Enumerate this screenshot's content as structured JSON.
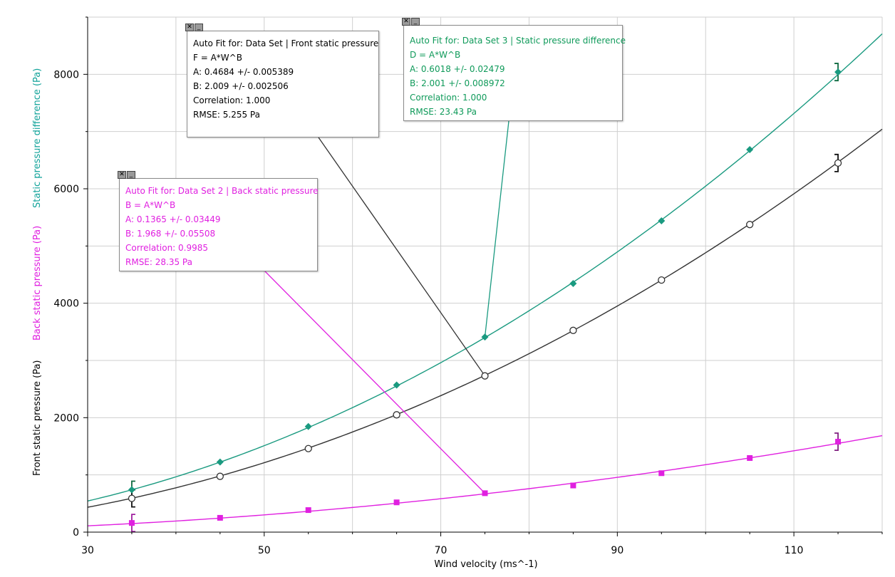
{
  "chart_data": {
    "type": "scatter",
    "xlabel": "Wind velocity  (ms^-1)",
    "ylabels": [
      {
        "text": "Front static pressure  (Pa)",
        "color": "#000000"
      },
      {
        "text": "Back static pressure  (Pa)",
        "color": "#e020e0"
      },
      {
        "text": "Static pressure difference  (Pa)",
        "color": "#12a39a"
      }
    ],
    "xlim": [
      30,
      120
    ],
    "ylim": [
      0,
      9000
    ],
    "x_ticks": [
      30,
      50,
      70,
      90,
      110
    ],
    "y_ticks": [
      0,
      2000,
      4000,
      6000,
      8000
    ],
    "grid": true,
    "series": [
      {
        "key": "front",
        "color": "#333333",
        "marker": "circle",
        "x": [
          35,
          45,
          55,
          65,
          75,
          85,
          95,
          105,
          115
        ],
        "y": [
          590,
          975,
          1460,
          2050,
          2730,
          3525,
          4405,
          5375,
          6450
        ],
        "fit": {
          "A": 0.4684,
          "B": 2.009
        },
        "error_bar": {
          "x": 115,
          "y": 6450,
          "half": 150
        }
      },
      {
        "key": "back",
        "color": "#e020e0",
        "marker": "square",
        "x": [
          35,
          45,
          55,
          65,
          75,
          85,
          95,
          105,
          115
        ],
        "y": [
          160,
          250,
          385,
          520,
          680,
          815,
          1030,
          1295,
          1580
        ],
        "fit": {
          "A": 0.1365,
          "B": 1.968
        },
        "error_bar": {
          "x": 115,
          "y": 1580,
          "half": 150
        }
      },
      {
        "key": "diff",
        "color": "#1a9a80",
        "marker": "diamond",
        "x": [
          35,
          45,
          55,
          65,
          75,
          85,
          95,
          105,
          115
        ],
        "y": [
          740,
          1225,
          1845,
          2570,
          3410,
          4345,
          5440,
          6685,
          8040
        ],
        "fit": {
          "A": 0.6018,
          "B": 2.001
        },
        "error_bar": {
          "x": 115,
          "y": 8040,
          "half": 150
        }
      }
    ],
    "start_error_bars": [
      {
        "x": 35,
        "y": 740,
        "half": 150,
        "color": "#1a9a80"
      },
      {
        "x": 35,
        "y": 590,
        "half": 150,
        "color": "#333333"
      },
      {
        "x": 35,
        "y": 160,
        "half": 150,
        "color": "#e020e0"
      }
    ],
    "annotations": [
      {
        "box": "front",
        "point": [
          75,
          2730
        ]
      },
      {
        "box": "back",
        "point": [
          75,
          680
        ]
      },
      {
        "box": "diff",
        "point": [
          75,
          3410
        ]
      }
    ]
  },
  "fit_boxes": {
    "front": {
      "color": "#000000",
      "title": "Auto Fit for: Data Set | Front static pressure",
      "equation": "F = A*W^B",
      "a": "A: 0.4684 +/- 0.005389",
      "b": "B: 2.009 +/- 0.002506",
      "correlation": "Correlation: 1.000",
      "rmse": "RMSE: 5.255 Pa"
    },
    "back": {
      "color": "#e020e0",
      "title": "Auto Fit for: Data Set 2 | Back static pressure",
      "equation": "B = A*W^B",
      "a": "A: 0.1365 +/- 0.03449",
      "b": "B: 1.968 +/- 0.05508",
      "correlation": "Correlation: 0.9985",
      "rmse": "RMSE: 28.35 Pa"
    },
    "diff": {
      "color": "#0f9a5a",
      "title": "Auto Fit for: Data Set 3 | Static pressure difference",
      "equation": "D = A*W^B",
      "a": "A: 0.6018 +/- 0.02479",
      "b": "B: 2.001 +/- 0.008972",
      "correlation": "Correlation: 1.000",
      "rmse": "RMSE: 23.43 Pa"
    }
  },
  "icons": {
    "close": "close-icon",
    "minimize": "minimize-icon"
  }
}
